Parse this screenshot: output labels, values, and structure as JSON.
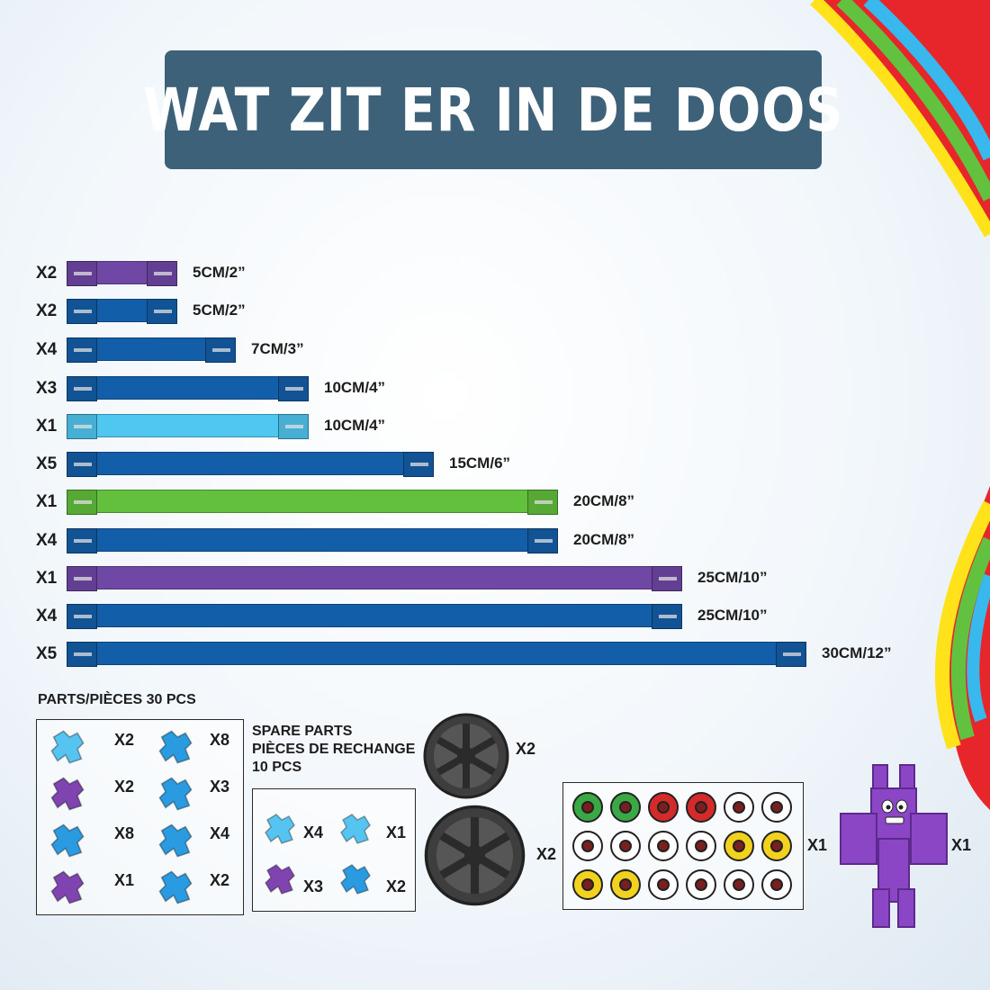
{
  "title": "WAT ZIT ER IN DE DOOS",
  "rods": [
    {
      "qty": "X2",
      "size": "5CM/2”",
      "color": "#6f48a6"
    },
    {
      "qty": "X2",
      "size": "5CM/2”",
      "color": "#135ea8"
    },
    {
      "qty": "X4",
      "size": "7CM/3”",
      "color": "#135ea8"
    },
    {
      "qty": "X3",
      "size": "10CM/4”",
      "color": "#135ea8"
    },
    {
      "qty": "X1",
      "size": "10CM/4”",
      "color": "#4fc7f0"
    },
    {
      "qty": "X5",
      "size": "15CM/6”",
      "color": "#135ea8"
    },
    {
      "qty": "X1",
      "size": "20CM/8”",
      "color": "#63c03d"
    },
    {
      "qty": "X4",
      "size": "20CM/8”",
      "color": "#135ea8"
    },
    {
      "qty": "X1",
      "size": "25CM/10”",
      "color": "#6f48a6"
    },
    {
      "qty": "X4",
      "size": "25CM/10”",
      "color": "#135ea8"
    },
    {
      "qty": "X5",
      "size": "30CM/12”",
      "color": "#135ea8"
    }
  ],
  "parts": {
    "heading": "PARTS/PIÈCES  30 PCS",
    "items": [
      {
        "qty": "X2",
        "color": "#56c4f0"
      },
      {
        "qty": "X8",
        "color": "#2a9be0"
      },
      {
        "qty": "X2",
        "color": "#7f44b0"
      },
      {
        "qty": "X3",
        "color": "#2a9be0"
      },
      {
        "qty": "X8",
        "color": "#2a9be0"
      },
      {
        "qty": "X4",
        "color": "#2a9be0"
      },
      {
        "qty": "X1",
        "color": "#7f44b0"
      },
      {
        "qty": "X2",
        "color": "#2a9be0"
      }
    ]
  },
  "spare": {
    "heading_line1": "SPARE PARTS",
    "heading_line2": "PIÈCES DE RECHANGE",
    "heading_line3": "10 PCS",
    "items": [
      {
        "qty": "X4",
        "color": "#56c4f0"
      },
      {
        "qty": "X1",
        "color": "#56c4f0"
      },
      {
        "qty": "X3",
        "color": "#7f44b0"
      },
      {
        "qty": "X2",
        "color": "#2a9be0"
      }
    ]
  },
  "wheels": [
    {
      "qty": "X2",
      "icon": "small-wheel-icon"
    },
    {
      "qty": "X2",
      "icon": "large-wheel-icon"
    }
  ],
  "eyes": {
    "qty": "X1",
    "colors": [
      "#3aa845",
      "#3aa845",
      "#d42a2a",
      "#d42a2a",
      "#ffffff",
      "#ffffff",
      "#ffffff",
      "#ffffff",
      "#ffffff",
      "#ffffff",
      "#f2d21e",
      "#f2d21e",
      "#f2d21e",
      "#f2d21e",
      "#ffffff",
      "#ffffff",
      "#ffffff",
      "#ffffff"
    ]
  },
  "character": {
    "qty": "X1",
    "color": "#8b46c6",
    "icon": "purple-robot-icon"
  }
}
